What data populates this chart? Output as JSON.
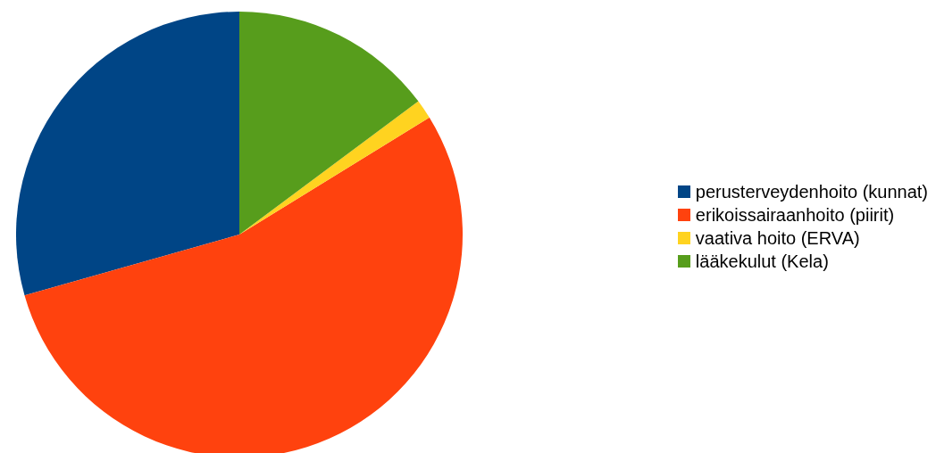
{
  "chart_data": {
    "type": "pie",
    "categories": [
      "perusterveydenhoito (kunnat)",
      "erikoissairaanhoito (piirit)",
      "vaativa hoito (ERVA)",
      "lääkekulut (Kela)"
    ],
    "values": [
      29.4,
      54.4,
      1.4,
      14.8
    ],
    "colors": [
      "#004586",
      "#ff420e",
      "#ffd320",
      "#579d1c"
    ],
    "legend": "right"
  }
}
